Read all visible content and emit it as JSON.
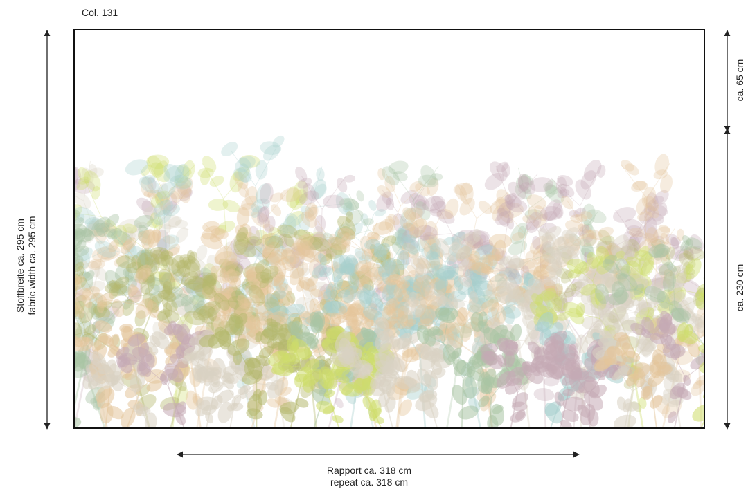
{
  "title": "Col. 131",
  "fabric_width": {
    "de": "Stoffbreite ca. 295 cm",
    "en": "fabric width ca. 295 cm"
  },
  "repeat": {
    "de": "Rapport ca. 318 cm",
    "en": "repeat ca. 318 cm"
  },
  "top_blank": "ca. 65 cm",
  "pattern_height": "ca. 230 cm",
  "colors": {
    "frame": "#111111",
    "arrow": "#222222",
    "leaf_beige": "#d9d2c3",
    "leaf_mauve": "#c4a9b4",
    "leaf_sage": "#a9c4a4",
    "leaf_teal": "#a8d0cd",
    "leaf_lime": "#cddd6a",
    "leaf_olive": "#b4b86d",
    "leaf_peach": "#e4c59a"
  }
}
